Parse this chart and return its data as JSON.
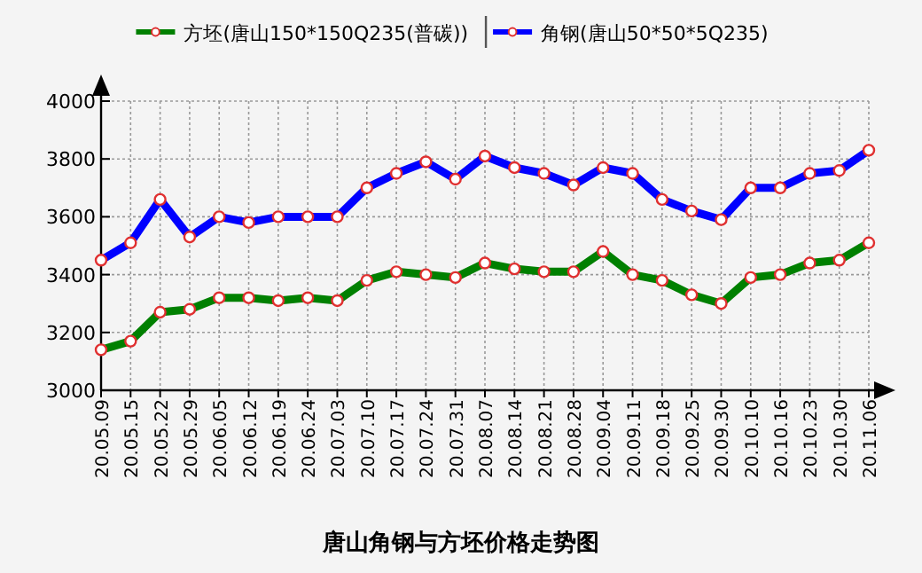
{
  "chart_data": {
    "type": "line",
    "title": "唐山角钢与方坯价格走势图",
    "categories": [
      "20.05.09",
      "20.05.15",
      "20.05.22",
      "20.05.29",
      "20.06.05",
      "20.06.12",
      "20.06.19",
      "20.06.24",
      "20.07.03",
      "20.07.10",
      "20.07.17",
      "20.07.24",
      "20.07.31",
      "20.08.07",
      "20.08.14",
      "20.08.21",
      "20.08.28",
      "20.09.04",
      "20.09.11",
      "20.09.18",
      "20.09.25",
      "20.09.30",
      "20.10.10",
      "20.10.16",
      "20.10.23",
      "20.10.30",
      "20.11.06"
    ],
    "series": [
      {
        "name": "方坯(唐山150*150Q235(普碳))",
        "color": "#008000",
        "values": [
          3140,
          3170,
          3270,
          3280,
          3320,
          3320,
          3310,
          3320,
          3310,
          3380,
          3410,
          3400,
          3390,
          3440,
          3420,
          3410,
          3410,
          3480,
          3400,
          3380,
          3330,
          3300,
          3390,
          3400,
          3440,
          3450,
          3510
        ]
      },
      {
        "name": "角钢(唐山50*50*5Q235)",
        "color": "#0000ff",
        "values": [
          3450,
          3510,
          3660,
          3530,
          3600,
          3580,
          3600,
          3600,
          3600,
          3700,
          3750,
          3790,
          3730,
          3810,
          3770,
          3750,
          3710,
          3770,
          3750,
          3660,
          3620,
          3590,
          3700,
          3700,
          3750,
          3760,
          3830
        ]
      }
    ],
    "ylim": [
      3000,
      4000
    ],
    "yticks": [
      3000,
      3200,
      3400,
      3600,
      3800,
      4000
    ],
    "grid": true,
    "legend": "top",
    "marker": "circle",
    "line_style": "solid"
  }
}
